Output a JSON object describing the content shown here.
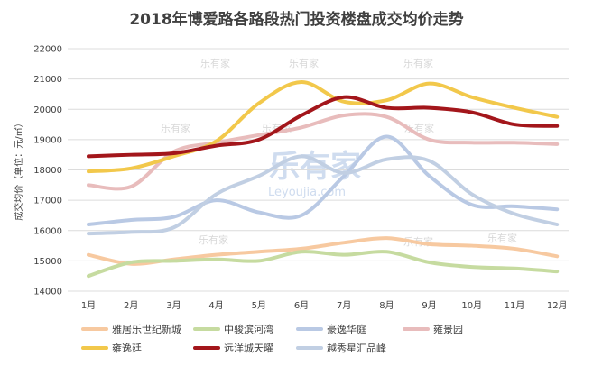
{
  "chart_data": {
    "type": "line",
    "title": "2018年博爱路各路段热门投资楼盘成交均价走势",
    "ylabel": "成交均价（单位：元/㎡）",
    "xlabel": "",
    "categories": [
      "1月",
      "2月",
      "3月",
      "4月",
      "5月",
      "6月",
      "7月",
      "8月",
      "9月",
      "10月",
      "11月",
      "12月"
    ],
    "ylim": [
      14000,
      22000
    ],
    "yticks": [
      14000,
      15000,
      16000,
      17000,
      18000,
      19000,
      20000,
      21000,
      22000
    ],
    "grid": true,
    "legend_position": "bottom",
    "series": [
      {
        "name": "雅居乐世纪新城",
        "color": "#f7c9a0",
        "values": [
          15200,
          14900,
          15050,
          15200,
          15300,
          15400,
          15600,
          15750,
          15550,
          15500,
          15400,
          15150
        ]
      },
      {
        "name": "中骏滨河湾",
        "color": "#c6dba0",
        "values": [
          14500,
          14950,
          15000,
          15050,
          15000,
          15300,
          15200,
          15300,
          14950,
          14800,
          14750,
          14650
        ]
      },
      {
        "name": "豪逸华庭",
        "color": "#b9c9e4",
        "values": [
          16200,
          16350,
          16450,
          17000,
          16600,
          16500,
          17800,
          19100,
          17800,
          16850,
          16800,
          16700
        ]
      },
      {
        "name": "雍景园",
        "color": "#e8bcbc",
        "values": [
          17500,
          17450,
          18600,
          18900,
          19150,
          19400,
          19800,
          19750,
          19000,
          18900,
          18900,
          18850
        ]
      },
      {
        "name": "雍逸廷",
        "color": "#f2c84b",
        "values": [
          17950,
          18050,
          18450,
          18950,
          20200,
          20900,
          20250,
          20300,
          20850,
          20400,
          20050,
          19750
        ]
      },
      {
        "name": "远洋城天曜",
        "color": "#a3161b",
        "values": [
          18450,
          18500,
          18550,
          18800,
          19000,
          19800,
          20400,
          20050,
          20050,
          19900,
          19500,
          19450
        ]
      },
      {
        "name": "越秀星汇品峰",
        "color": "#c1cfe3",
        "values": [
          15900,
          15950,
          16100,
          17200,
          17800,
          18450,
          17900,
          18350,
          18300,
          17200,
          16550,
          16200
        ]
      }
    ]
  },
  "watermark": {
    "brand": "乐有家",
    "brand_en": "Leyoujia.com"
  }
}
